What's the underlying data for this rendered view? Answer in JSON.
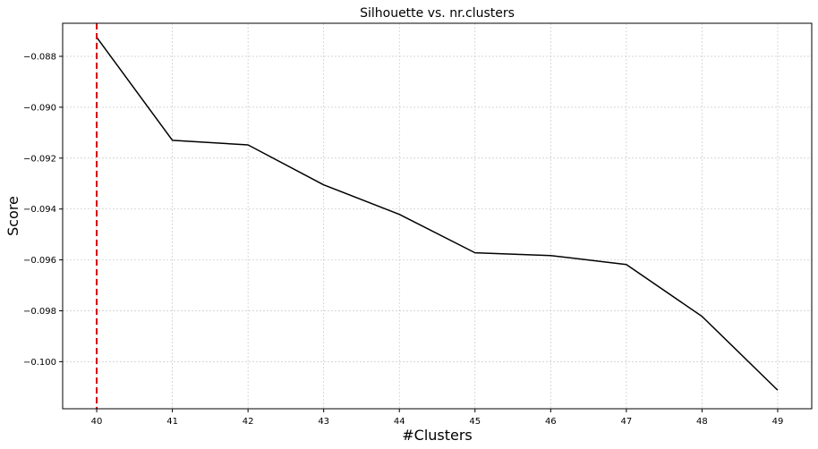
{
  "chart_data": {
    "type": "line",
    "title": "Silhouette vs. nr.clusters",
    "xlabel": "#Clusters",
    "ylabel": "Score",
    "x": [
      40,
      41,
      42,
      43,
      44,
      45,
      46,
      47,
      48,
      49
    ],
    "series": [
      {
        "values": [
          -0.08725,
          -0.0913,
          -0.09148,
          -0.09305,
          -0.09421,
          -0.09572,
          -0.09583,
          -0.09618,
          -0.09822,
          -0.10112
        ],
        "color": "#000000"
      }
    ],
    "reference_line": {
      "axis": "x",
      "value": 40,
      "color": "#d40000",
      "style": "dashed"
    },
    "xticks": [
      40,
      41,
      42,
      43,
      44,
      45,
      46,
      47,
      48,
      49
    ],
    "xtick_labels": [
      "40",
      "41",
      "42",
      "43",
      "44",
      "45",
      "46",
      "47",
      "48",
      "49"
    ],
    "yticks": [
      -0.088,
      -0.09,
      -0.092,
      -0.094,
      -0.096,
      -0.098,
      -0.1
    ],
    "ytick_labels": [
      "−0.088",
      "−0.090",
      "−0.092",
      "−0.094",
      "−0.096",
      "−0.098",
      "−0.100"
    ],
    "xlim": [
      39.55,
      49.45
    ],
    "ylim": [
      -0.10185,
      -0.0867
    ],
    "grid": true,
    "legend": "none"
  }
}
